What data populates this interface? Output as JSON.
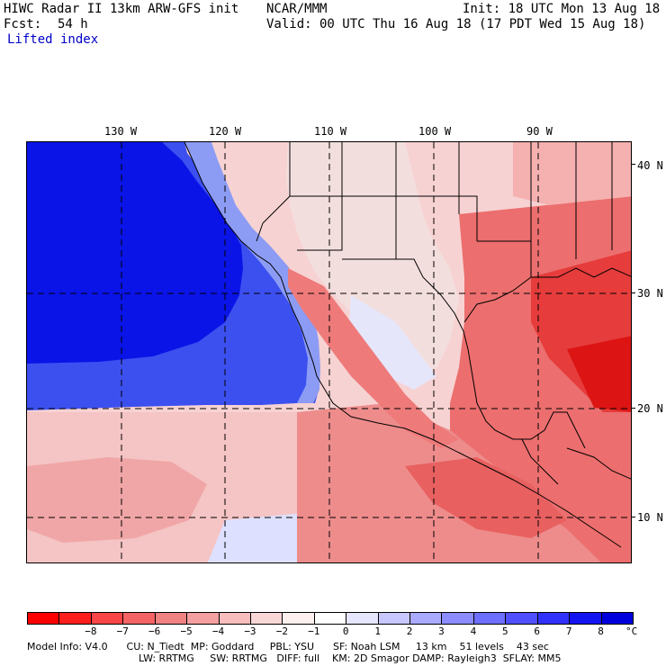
{
  "header": {
    "title": "HIWC Radar II 13km ARW-GFS init",
    "center": "NCAR/MMM",
    "init": "Init: 18 UTC Mon 13 Aug 18",
    "fcst_label": "Fcst:",
    "fcst_value": "54 h",
    "valid": "Valid: 00 UTC Thu 16 Aug 18 (17 PDT Wed 15 Aug 18)",
    "field": "Lifted index"
  },
  "map": {
    "lon_labels": [
      "130 W",
      "120 W",
      "110 W",
      "100 W",
      "90 W"
    ],
    "lat_labels": [
      "40 N",
      "30 N",
      "20 N",
      "10 N"
    ],
    "colors": {
      "ocean_deep": "#0a14e6",
      "ocean_mid": "#3c50f0",
      "ocean_light": "#b4beff",
      "neutral": "#f2dcdc",
      "warm_light": "#f5b4b4",
      "warm_mid": "#ec6e6e",
      "warm_strong": "#e61e1e"
    }
  },
  "colorbar": {
    "colors": [
      "#ff0000",
      "#ff1e1e",
      "#fa4646",
      "#f56464",
      "#f08282",
      "#f5a0a0",
      "#f8bebe",
      "#fad7d7",
      "#fff0f0",
      "#ffffff",
      "#e6e6ff",
      "#c8c8ff",
      "#aaaaff",
      "#8c8cff",
      "#6e6eff",
      "#5050ff",
      "#3232ff",
      "#1414f0",
      "#0000dc"
    ],
    "labels": [
      "−8",
      "−7",
      "−6",
      "−5",
      "−4",
      "−3",
      "−2",
      "−1",
      "0",
      "1",
      "2",
      "3",
      "4",
      "5",
      "6",
      "7",
      "8"
    ],
    "unit": "°C"
  },
  "footer": {
    "line1": "Model Info: V4.0      CU: N_Tiedt  MP: Goddard     PBL: YSU      SF: Noah LSM     13 km    51 levels    43 sec",
    "line2": "LW: RRTMG     SW: RRTMG   DIFF: full    KM: 2D Smagor DAMP: Rayleigh3  SFLAY: MM5"
  }
}
